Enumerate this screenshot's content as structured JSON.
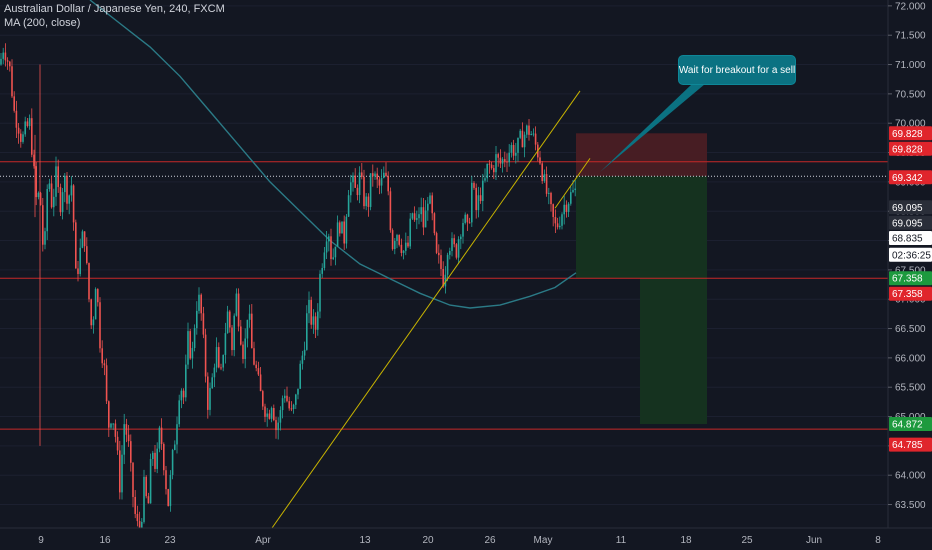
{
  "legend": {
    "symbol_line": "Australian Dollar / Japanese Yen, 240, FXCM",
    "ma_line": "MA (200, close)"
  },
  "annotation": {
    "text": "Wait for breakout for a sell"
  },
  "colors": {
    "background": "#131722",
    "up": "#26a69a",
    "down": "#ef5350",
    "ma": "#2b7a86",
    "trendline": "#c8b400",
    "hline": "#c62828",
    "stop_zone": "#4a1d24",
    "target_zone": "#15321f"
  },
  "chart_data": {
    "type": "candlestick",
    "title": "",
    "x_ticks": [
      "9",
      "16",
      "23",
      "Apr",
      "13",
      "20",
      "26",
      "May",
      "11",
      "18",
      "25",
      "Jun",
      "8"
    ],
    "y_ticks": [
      63.5,
      64.0,
      64.5,
      65.0,
      65.5,
      66.0,
      66.5,
      67.0,
      67.5,
      68.0,
      68.5,
      69.0,
      69.5,
      70.0,
      70.5,
      71.0,
      71.5,
      72.0
    ],
    "y_tick_labels": [
      "63.500",
      "64.000",
      "64.500",
      "65.000",
      "65.500",
      "66.000",
      "66.500",
      "67.000",
      "67.500",
      "68.000",
      "68.500",
      "69.000",
      "69.500",
      "70.000",
      "70.500",
      "71.000",
      "71.500",
      "72.000"
    ],
    "ylim": [
      63.1,
      72.1
    ],
    "horizontal_lines": [
      69.342,
      67.358,
      64.785
    ],
    "current_price": 69.095,
    "price_tags": [
      {
        "label": "69.828",
        "value": 69.828,
        "kind": "red"
      },
      {
        "label": "69.828",
        "value": 69.828,
        "kind": "red"
      },
      {
        "label": "69.342",
        "value": 69.342,
        "kind": "red"
      },
      {
        "label": "69.095",
        "value": 69.095,
        "kind": "dark"
      },
      {
        "label": "69.095",
        "value": 69.095,
        "kind": "dark"
      },
      {
        "label": "68.835",
        "value": 68.835,
        "kind": "white"
      },
      {
        "label": "02:36:25",
        "value": 68.55,
        "kind": "white"
      },
      {
        "label": "67.358",
        "value": 67.358,
        "kind": "green"
      },
      {
        "label": "67.358",
        "value": 67.358,
        "kind": "red"
      },
      {
        "label": "64.872",
        "value": 64.872,
        "kind": "green"
      },
      {
        "label": "64.785",
        "value": 64.785,
        "kind": "red"
      }
    ],
    "short_position": {
      "entry": 69.095,
      "stop": 69.828,
      "target_1": 67.358,
      "target_2": 64.872
    },
    "series": [
      {
        "kind": "candles",
        "waypoints": [
          [
            0,
            71.0
          ],
          [
            3,
            71.3
          ],
          [
            6,
            71.2
          ],
          [
            10,
            70.9
          ],
          [
            14,
            70.2
          ],
          [
            18,
            70.0
          ],
          [
            22,
            69.7
          ],
          [
            26,
            69.9
          ],
          [
            30,
            70.0
          ],
          [
            36,
            68.7
          ],
          [
            40,
            68.8
          ],
          [
            44,
            67.6
          ],
          [
            48,
            69.2
          ],
          [
            52,
            68.6
          ],
          [
            56,
            69.1
          ],
          [
            60,
            68.6
          ],
          [
            64,
            69.1
          ],
          [
            68,
            68.7
          ],
          [
            72,
            69.0
          ],
          [
            76,
            67.3
          ],
          [
            80,
            67.8
          ],
          [
            84,
            68.2
          ],
          [
            88,
            67.2
          ],
          [
            92,
            66.4
          ],
          [
            96,
            67.4
          ],
          [
            100,
            66.3
          ],
          [
            104,
            65.9
          ],
          [
            108,
            64.8
          ],
          [
            112,
            65.1
          ],
          [
            116,
            64.6
          ],
          [
            120,
            63.8
          ],
          [
            124,
            64.9
          ],
          [
            128,
            64.6
          ],
          [
            132,
            63.8
          ],
          [
            136,
            63.2
          ],
          [
            140,
            63.0
          ],
          [
            144,
            63.8
          ],
          [
            148,
            63.4
          ],
          [
            152,
            64.5
          ],
          [
            156,
            64.1
          ],
          [
            160,
            64.8
          ],
          [
            164,
            64.2
          ],
          [
            168,
            63.5
          ],
          [
            172,
            64.2
          ],
          [
            176,
            64.8
          ],
          [
            180,
            65.6
          ],
          [
            184,
            65.3
          ],
          [
            188,
            66.3
          ],
          [
            192,
            66.0
          ],
          [
            196,
            66.9
          ],
          [
            200,
            67.0
          ],
          [
            204,
            66.1
          ],
          [
            208,
            65.2
          ],
          [
            212,
            65.6
          ],
          [
            216,
            66.2
          ],
          [
            220,
            65.5
          ],
          [
            224,
            66.3
          ],
          [
            228,
            66.8
          ],
          [
            232,
            66.2
          ],
          [
            236,
            67.1
          ],
          [
            240,
            66.5
          ],
          [
            244,
            66.0
          ],
          [
            248,
            66.9
          ],
          [
            252,
            66.1
          ],
          [
            256,
            65.8
          ],
          [
            260,
            65.4
          ],
          [
            264,
            65.2
          ],
          [
            268,
            65.0
          ],
          [
            272,
            65.3
          ],
          [
            276,
            64.8
          ],
          [
            280,
            65.0
          ],
          [
            284,
            65.5
          ],
          [
            288,
            65.2
          ],
          [
            292,
            65.0
          ],
          [
            296,
            65.3
          ],
          [
            300,
            65.8
          ],
          [
            304,
            66.2
          ],
          [
            308,
            66.9
          ],
          [
            312,
            66.6
          ],
          [
            316,
            66.5
          ],
          [
            320,
            67.4
          ],
          [
            324,
            67.9
          ],
          [
            328,
            68.3
          ],
          [
            332,
            67.6
          ],
          [
            336,
            68.1
          ],
          [
            340,
            68.3
          ],
          [
            344,
            68.0
          ],
          [
            348,
            68.9
          ],
          [
            352,
            69.0
          ],
          [
            356,
            68.8
          ],
          [
            360,
            69.1
          ],
          [
            364,
            68.7
          ],
          [
            368,
            68.6
          ],
          [
            372,
            69.2
          ],
          [
            376,
            69.0
          ],
          [
            380,
            68.9
          ],
          [
            384,
            69.1
          ],
          [
            388,
            68.9
          ],
          [
            392,
            67.9
          ],
          [
            396,
            68.2
          ],
          [
            400,
            68.0
          ],
          [
            404,
            67.8
          ],
          [
            408,
            67.9
          ],
          [
            412,
            68.5
          ],
          [
            416,
            68.2
          ],
          [
            420,
            68.6
          ],
          [
            424,
            68.2
          ],
          [
            428,
            68.8
          ],
          [
            432,
            68.4
          ],
          [
            436,
            67.7
          ],
          [
            440,
            67.6
          ],
          [
            444,
            67.3
          ],
          [
            448,
            68.0
          ],
          [
            452,
            67.9
          ],
          [
            456,
            67.8
          ],
          [
            460,
            68.2
          ],
          [
            464,
            68.4
          ],
          [
            468,
            68.1
          ],
          [
            472,
            69.0
          ],
          [
            476,
            68.5
          ],
          [
            480,
            68.8
          ],
          [
            484,
            68.9
          ],
          [
            488,
            69.3
          ],
          [
            492,
            69.2
          ],
          [
            496,
            69.4
          ],
          [
            500,
            69.3
          ],
          [
            504,
            69.4
          ],
          [
            508,
            69.5
          ],
          [
            512,
            69.6
          ],
          [
            516,
            69.5
          ],
          [
            520,
            69.7
          ],
          [
            524,
            69.8
          ],
          [
            528,
            69.9
          ],
          [
            532,
            69.8
          ],
          [
            536,
            69.6
          ],
          [
            540,
            69.4
          ],
          [
            544,
            69.0
          ],
          [
            548,
            68.7
          ],
          [
            552,
            68.4
          ],
          [
            556,
            68.2
          ],
          [
            560,
            68.4
          ],
          [
            564,
            68.6
          ],
          [
            568,
            68.7
          ],
          [
            572,
            68.8
          ],
          [
            576,
            68.85
          ]
        ]
      },
      {
        "kind": "ma200",
        "points": [
          [
            90,
            72.1
          ],
          [
            120,
            71.7
          ],
          [
            150,
            71.3
          ],
          [
            180,
            70.8
          ],
          [
            210,
            70.2
          ],
          [
            240,
            69.6
          ],
          [
            270,
            69.0
          ],
          [
            300,
            68.5
          ],
          [
            330,
            68.0
          ],
          [
            360,
            67.6
          ],
          [
            390,
            67.35
          ],
          [
            420,
            67.1
          ],
          [
            450,
            66.9
          ],
          [
            470,
            66.85
          ],
          [
            500,
            66.9
          ],
          [
            530,
            67.05
          ],
          [
            555,
            67.2
          ],
          [
            576,
            67.45
          ]
        ]
      },
      {
        "kind": "trendline",
        "points": [
          [
            272,
            63.1
          ],
          [
            580,
            70.55
          ]
        ]
      },
      {
        "kind": "channel",
        "points": [
          [
            555,
            68.55
          ],
          [
            590,
            69.4
          ]
        ]
      }
    ]
  }
}
